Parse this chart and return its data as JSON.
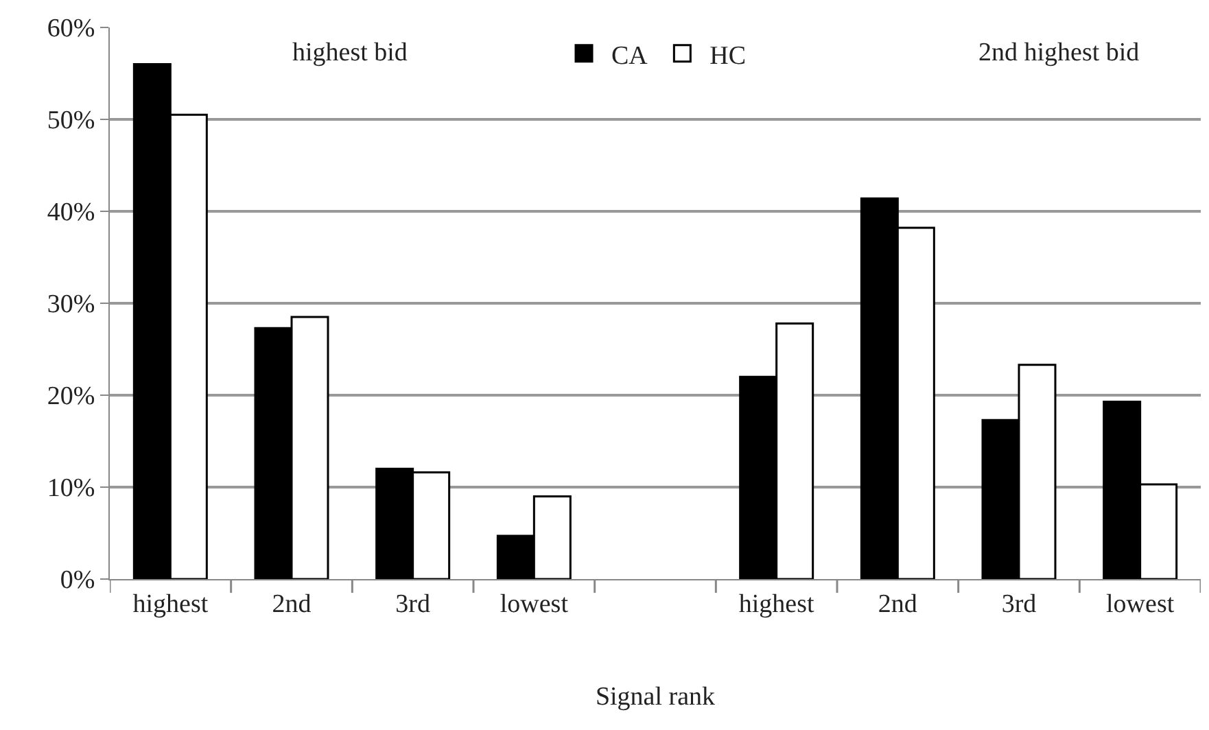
{
  "chart_data": {
    "type": "bar",
    "xlabel": "Signal rank",
    "categories": [
      "highest",
      "2nd",
      "3rd",
      "lowest",
      null,
      "highest",
      "2nd",
      "3rd",
      "lowest"
    ],
    "series": [
      {
        "name": "CA",
        "color": "#000000",
        "values": [
          56,
          27.3,
          12,
          4.7,
          null,
          22,
          41.4,
          17.3,
          19.3
        ]
      },
      {
        "name": "HC",
        "color": "#ffffff",
        "values": [
          50.5,
          28.5,
          11.6,
          9,
          null,
          27.8,
          38.2,
          23.3,
          10.3
        ]
      }
    ],
    "ylim": [
      0,
      60
    ],
    "yticks": [
      {
        "value": 0,
        "label": "0%"
      },
      {
        "value": 10,
        "label": "10%"
      },
      {
        "value": 20,
        "label": "20%"
      },
      {
        "value": 30,
        "label": "30%"
      },
      {
        "value": 40,
        "label": "40%"
      },
      {
        "value": 50,
        "label": "50%"
      },
      {
        "value": 60,
        "label": "60%"
      }
    ],
    "annotations": [
      "highest bid",
      "2nd highest bid"
    ],
    "grid": "y",
    "legend": "top"
  }
}
